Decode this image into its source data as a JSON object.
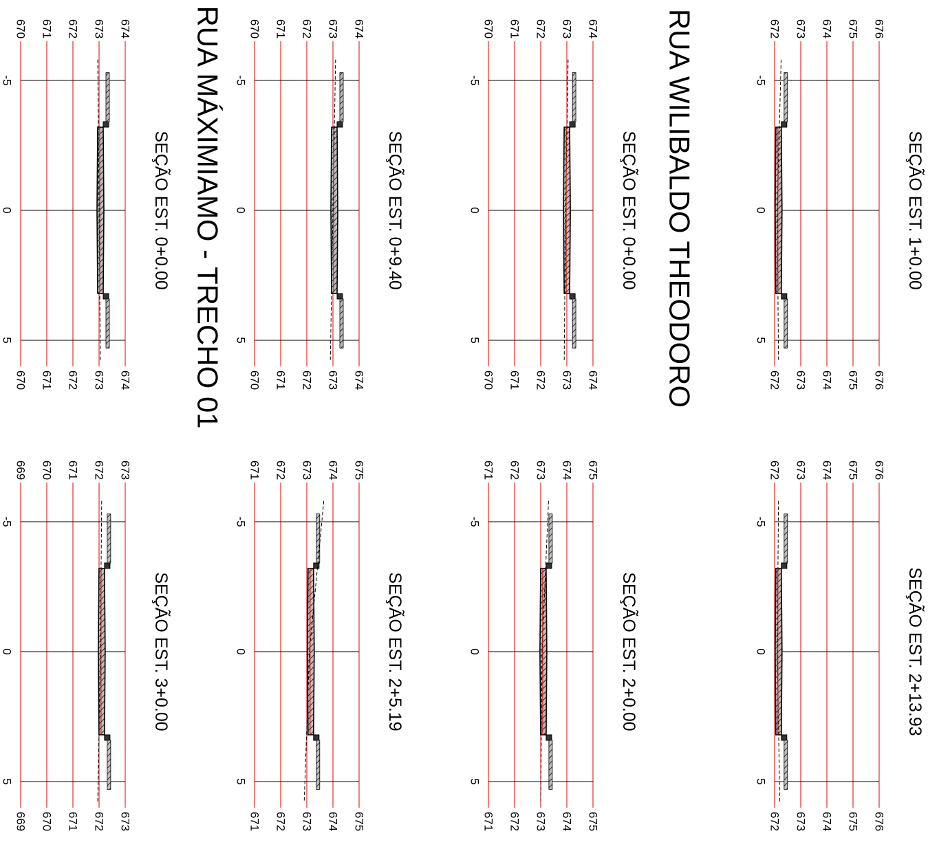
{
  "drawing": {
    "orientation": "rotated-90-clockwise",
    "colors": {
      "elevation_grid": "#e00000",
      "offset_grid": "#000000",
      "pavement_hatch": "#555555",
      "terrain": "#000000",
      "background": "#ffffff"
    },
    "offset_ticks": [
      "-5",
      "0",
      "5"
    ],
    "streets": [
      {
        "name": "RUA WILIBALDO THEODORO"
      },
      {
        "name": "RUA MÁXIMIAMO - TRECHO 01"
      }
    ],
    "sections": [
      {
        "title": "SEÇÃO EST. 1+0.00",
        "elevations": [
          "672",
          "673",
          "674",
          "675",
          "676"
        ],
        "terrain": [
          672.25,
          672.1,
          672.15
        ]
      },
      {
        "title": "SEÇÃO EST. 0+0.00",
        "elevations": [
          "670",
          "671",
          "672",
          "673",
          "674"
        ],
        "terrain": [
          673.05,
          672.95,
          672.9
        ]
      },
      {
        "title": "SEÇÃO EST. 0+9.40",
        "elevations": [
          "670",
          "671",
          "672",
          "673",
          "674"
        ],
        "terrain": [
          673.1,
          673.0,
          672.9
        ]
      },
      {
        "title": "SEÇÃO EST. 0+0.00",
        "elevations": [
          "670",
          "671",
          "672",
          "673",
          "674"
        ],
        "terrain": [
          672.95,
          673.0,
          673.05
        ]
      },
      {
        "title": "SEÇÃO EST. 2+13.93",
        "elevations": [
          "672",
          "673",
          "674",
          "675",
          "676"
        ],
        "terrain": [
          672.15,
          672.1,
          672.2
        ]
      },
      {
        "title": "SEÇÃO EST. 2+0.00",
        "elevations": [
          "671",
          "672",
          "673",
          "674",
          "675"
        ],
        "terrain": [
          673.3,
          673.05,
          673.0
        ]
      },
      {
        "title": "SEÇÃO EST. 2+5.19",
        "elevations": [
          "671",
          "672",
          "673",
          "674",
          "675"
        ],
        "terrain": [
          673.65,
          673.1,
          672.9
        ]
      },
      {
        "title": "SEÇÃO EST. 3+0.00",
        "elevations": [
          "669",
          "670",
          "671",
          "672",
          "673"
        ],
        "terrain": [
          672.1,
          672.05,
          671.95
        ]
      }
    ]
  }
}
